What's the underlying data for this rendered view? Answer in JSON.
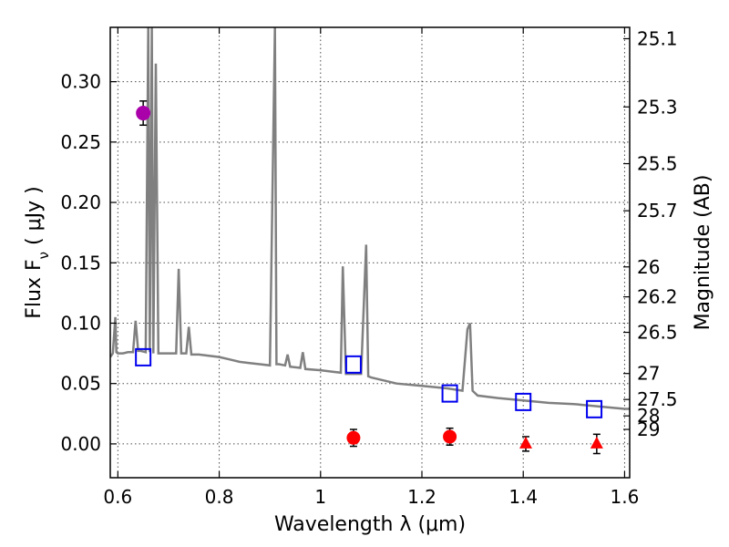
{
  "chart_data": {
    "type": "scatter",
    "xlabel": "Wavelength  λ (μm)",
    "ylabel": "Flux  F",
    "ylabel_sub": "ν",
    "ylabel_unit": " ( μJy )",
    "y2label": "Magnitude (AB)",
    "xlim": [
      0.585,
      1.61
    ],
    "ylim": [
      -0.028,
      0.345
    ],
    "x_ticks": [
      0.6,
      0.8,
      1.0,
      1.2,
      1.4,
      1.6
    ],
    "x_tick_labels": [
      "0.6",
      "0.8",
      "1",
      "1.2",
      "1.4",
      "1.6"
    ],
    "y_ticks": [
      0.0,
      0.05,
      0.1,
      0.15,
      0.2,
      0.25,
      0.3
    ],
    "y_tick_labels": [
      "0.00",
      "0.05",
      "0.10",
      "0.15",
      "0.20",
      "0.25",
      "0.30"
    ],
    "y2_tick_labels": [
      "25.1",
      "25.3",
      "25.5",
      "25.7",
      "26",
      "26.2",
      "26.5",
      "27",
      "27.5",
      "28",
      "29"
    ],
    "y2_tick_positions_flux": [
      0.3356,
      0.2791,
      0.2321,
      0.1931,
      0.1466,
      0.1218,
      0.0924,
      0.0583,
      0.0368,
      0.0232,
      0.012
    ],
    "grid": true,
    "colors": {
      "spectrum": "#808080",
      "model_points": "#0000ee",
      "detections": "#ff0000",
      "first_band": "#aa00aa",
      "error_bars": "#000000"
    },
    "series": [
      {
        "kind": "spectrum",
        "x": [
          0.585,
          0.59,
          0.595,
          0.597,
          0.6,
          0.61,
          0.62,
          0.63,
          0.635,
          0.64,
          0.645,
          0.655,
          0.66,
          0.663,
          0.667,
          0.67,
          0.675,
          0.68,
          0.685,
          0.7,
          0.715,
          0.72,
          0.725,
          0.735,
          0.74,
          0.745,
          0.76,
          0.78,
          0.8,
          0.82,
          0.84,
          0.86,
          0.88,
          0.9,
          0.91,
          0.913,
          0.918,
          0.93,
          0.935,
          0.94,
          0.96,
          0.965,
          0.97,
          1.0,
          1.02,
          1.04,
          1.044,
          1.05,
          1.06,
          1.08,
          1.09,
          1.094,
          1.1,
          1.12,
          1.15,
          1.2,
          1.25,
          1.28,
          1.29,
          1.295,
          1.3,
          1.31,
          1.35,
          1.4,
          1.45,
          1.5,
          1.55,
          1.6,
          1.61
        ],
        "y": [
          0.072,
          0.075,
          0.105,
          0.076,
          0.075,
          0.075,
          0.076,
          0.076,
          0.102,
          0.077,
          0.077,
          0.076,
          0.345,
          0.076,
          0.345,
          0.075,
          0.315,
          0.075,
          0.075,
          0.075,
          0.075,
          0.145,
          0.075,
          0.075,
          0.097,
          0.074,
          0.074,
          0.073,
          0.072,
          0.07,
          0.068,
          0.067,
          0.066,
          0.065,
          0.345,
          0.066,
          0.066,
          0.065,
          0.074,
          0.064,
          0.063,
          0.076,
          0.062,
          0.061,
          0.06,
          0.059,
          0.147,
          0.058,
          0.058,
          0.058,
          0.165,
          0.056,
          0.055,
          0.053,
          0.05,
          0.048,
          0.046,
          0.044,
          0.095,
          0.1,
          0.044,
          0.04,
          0.038,
          0.036,
          0.034,
          0.033,
          0.031,
          0.029,
          0.029
        ]
      },
      {
        "kind": "model-photometry",
        "marker": "open-square",
        "x": [
          0.65,
          1.065,
          1.255,
          1.4,
          1.54
        ],
        "y": [
          0.071,
          0.065,
          0.041,
          0.034,
          0.028
        ]
      },
      {
        "kind": "observed-detection",
        "marker": "circle",
        "x": [
          1.065,
          1.255
        ],
        "y": [
          0.005,
          0.006
        ],
        "err": [
          0.007,
          0.007
        ]
      },
      {
        "kind": "observed-upper-limit",
        "marker": "triangle",
        "x": [
          1.405,
          1.545
        ],
        "y": [
          0.0,
          0.0
        ],
        "err": [
          0.006,
          0.008
        ]
      },
      {
        "kind": "observed-first-band",
        "marker": "circle",
        "x": [
          0.65
        ],
        "y": [
          0.274
        ],
        "err": [
          0.01
        ]
      }
    ]
  }
}
